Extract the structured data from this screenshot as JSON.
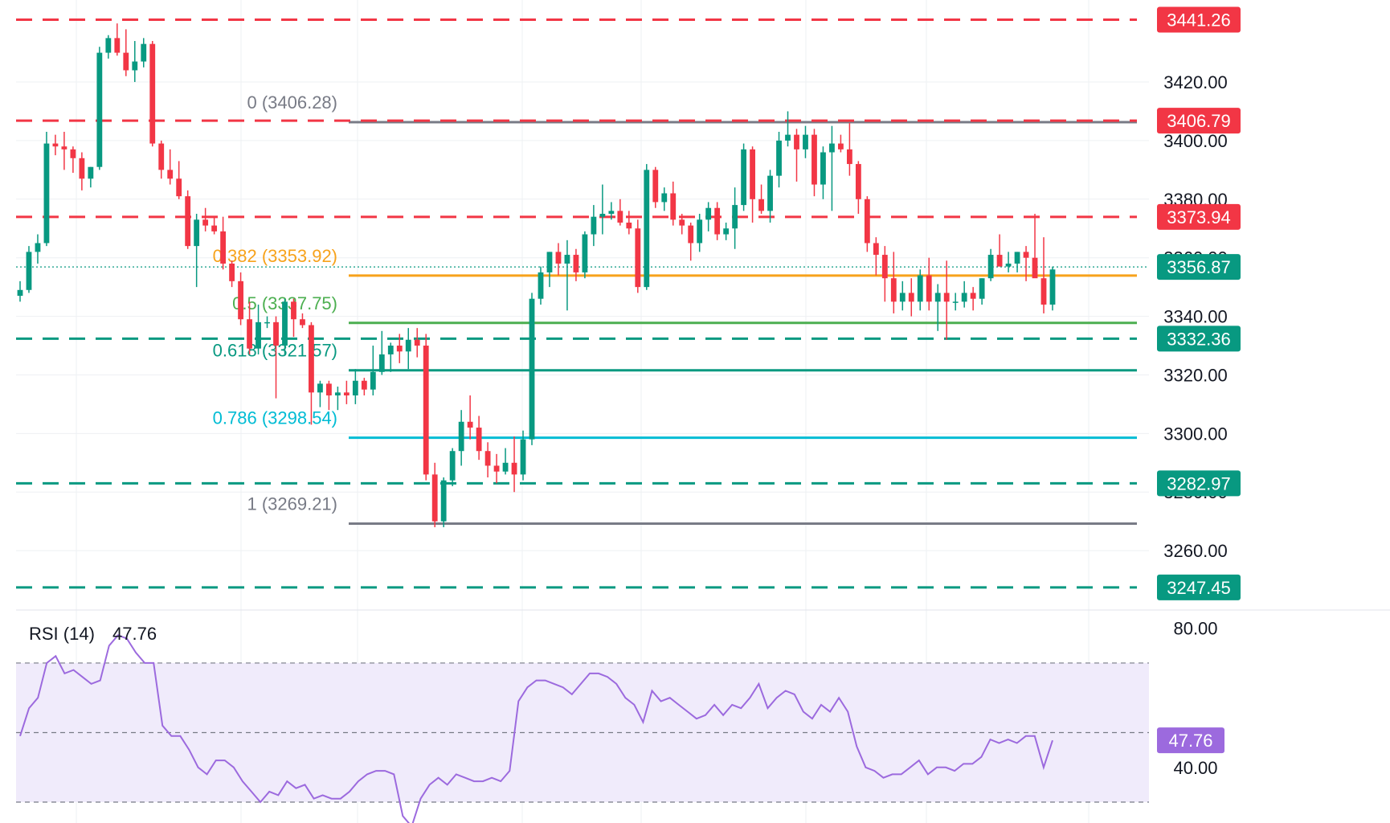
{
  "chart_data": {
    "type": "candlestick",
    "price_axis": {
      "ticks": [
        "3420.00",
        "3400.00",
        "3380.00",
        "3360.00",
        "3340.00",
        "3320.00",
        "3300.00",
        "3280.00",
        "3260.00"
      ],
      "ylim": [
        3236,
        3450
      ]
    },
    "horizontal_levels": [
      {
        "value": 3441.26,
        "label": "3441.26",
        "style": "dashed",
        "color": "#f23645"
      },
      {
        "value": 3406.79,
        "label": "3406.79",
        "style": "dashed",
        "color": "#f23645"
      },
      {
        "value": 3373.94,
        "label": "3373.94",
        "style": "dashed",
        "color": "#f23645"
      },
      {
        "value": 3332.36,
        "label": "3332.36",
        "style": "dashed",
        "color": "#089981"
      },
      {
        "value": 3282.97,
        "label": "3282.97",
        "style": "dashed",
        "color": "#089981"
      },
      {
        "value": 3247.45,
        "label": "3247.45",
        "style": "dashed",
        "color": "#089981"
      }
    ],
    "current_price": {
      "value": 3356.87,
      "label": "3356.87",
      "color": "#089981"
    },
    "fibonacci": [
      {
        "label": "0 (3406.28)",
        "value": 3406.28,
        "color": "#787b86"
      },
      {
        "label": "0.382 (3353.92)",
        "value": 3353.92,
        "color": "#f7a21b"
      },
      {
        "label": "0.5 (3337.75)",
        "value": 3337.75,
        "color": "#4caf50"
      },
      {
        "label": "0.618 (3321.57)",
        "value": 3321.57,
        "color": "#089981"
      },
      {
        "label": "0.786 (3298.54)",
        "value": 3298.54,
        "color": "#00bcd4"
      },
      {
        "label": "1 (3269.21)",
        "value": 3269.21,
        "color": "#787b86"
      }
    ],
    "candles": [
      [
        3347,
        3352,
        3345,
        3349
      ],
      [
        3349,
        3364,
        3348,
        3362
      ],
      [
        3362,
        3368,
        3358,
        3365
      ],
      [
        3365,
        3403,
        3364,
        3399
      ],
      [
        3399,
        3402,
        3395,
        3398
      ],
      [
        3398,
        3403,
        3390,
        3397
      ],
      [
        3397,
        3398,
        3389,
        3394
      ],
      [
        3394,
        3396,
        3383,
        3387
      ],
      [
        3387,
        3391,
        3384,
        3391
      ],
      [
        3391,
        3432,
        3390,
        3430
      ],
      [
        3430,
        3436,
        3428,
        3435
      ],
      [
        3435,
        3440,
        3429,
        3430
      ],
      [
        3430,
        3438,
        3422,
        3424
      ],
      [
        3424,
        3434,
        3420,
        3427
      ],
      [
        3427,
        3435,
        3425,
        3433
      ],
      [
        3433,
        3434,
        3398,
        3399
      ],
      [
        3399,
        3400,
        3387,
        3390
      ],
      [
        3390,
        3397,
        3385,
        3387
      ],
      [
        3387,
        3393,
        3380,
        3381
      ],
      [
        3381,
        3383,
        3363,
        3364
      ],
      [
        3364,
        3375,
        3350,
        3373
      ],
      [
        3373,
        3377,
        3369,
        3371
      ],
      [
        3371,
        3374,
        3368,
        3369
      ],
      [
        3369,
        3374,
        3356,
        3358
      ],
      [
        3358,
        3359,
        3350,
        3352
      ],
      [
        3352,
        3355,
        3337,
        3339
      ],
      [
        3339,
        3345,
        3327,
        3329
      ],
      [
        3329,
        3344,
        3327,
        3338
      ],
      [
        3338,
        3340,
        3336,
        3338
      ],
      [
        3338,
        3340,
        3312,
        3330
      ],
      [
        3330,
        3346,
        3327,
        3345
      ],
      [
        3345,
        3346,
        3333,
        3339
      ],
      [
        3339,
        3341,
        3336,
        3337
      ],
      [
        3337,
        3338,
        3303,
        3314
      ],
      [
        3314,
        3318,
        3309,
        3317
      ],
      [
        3317,
        3318,
        3308,
        3313
      ],
      [
        3313,
        3316,
        3308,
        3314
      ],
      [
        3314,
        3318,
        3310,
        3313
      ],
      [
        3313,
        3322,
        3310,
        3318
      ],
      [
        3318,
        3319,
        3313,
        3315
      ],
      [
        3315,
        3330,
        3313,
        3321
      ],
      [
        3321,
        3335,
        3320,
        3327
      ],
      [
        3327,
        3331,
        3321,
        3330
      ],
      [
        3330,
        3334,
        3324,
        3328
      ],
      [
        3328,
        3336,
        3322,
        3332
      ],
      [
        3332,
        3336,
        3326,
        3330
      ],
      [
        3330,
        3334,
        3284,
        3286
      ],
      [
        3286,
        3290,
        3268,
        3270
      ],
      [
        3270,
        3285,
        3268,
        3284
      ],
      [
        3284,
        3295,
        3282,
        3294
      ],
      [
        3294,
        3308,
        3289,
        3304
      ],
      [
        3304,
        3313,
        3298,
        3302
      ],
      [
        3302,
        3306,
        3291,
        3294
      ],
      [
        3294,
        3297,
        3285,
        3289
      ],
      [
        3289,
        3293,
        3283,
        3287
      ],
      [
        3287,
        3295,
        3286,
        3290
      ],
      [
        3290,
        3299,
        3280,
        3286
      ],
      [
        3286,
        3301,
        3284,
        3298
      ],
      [
        3298,
        3348,
        3296,
        3346
      ],
      [
        3346,
        3357,
        3344,
        3355
      ],
      [
        3355,
        3362,
        3350,
        3362
      ],
      [
        3362,
        3365,
        3354,
        3358
      ],
      [
        3358,
        3366,
        3342,
        3361
      ],
      [
        3361,
        3363,
        3352,
        3355
      ],
      [
        3355,
        3369,
        3353,
        3368
      ],
      [
        3368,
        3378,
        3364,
        3374
      ],
      [
        3374,
        3385,
        3368,
        3375
      ],
      [
        3375,
        3379,
        3373,
        3376
      ],
      [
        3376,
        3380,
        3371,
        3372
      ],
      [
        3372,
        3376,
        3368,
        3370
      ],
      [
        3370,
        3373,
        3348,
        3350
      ],
      [
        3350,
        3392,
        3349,
        3390
      ],
      [
        3390,
        3391,
        3377,
        3379
      ],
      [
        3379,
        3384,
        3376,
        3382
      ],
      [
        3382,
        3386,
        3371,
        3373
      ],
      [
        3373,
        3375,
        3368,
        3371
      ],
      [
        3371,
        3372,
        3359,
        3365
      ],
      [
        3365,
        3375,
        3362,
        3373
      ],
      [
        3373,
        3379,
        3369,
        3377
      ],
      [
        3377,
        3379,
        3366,
        3368
      ],
      [
        3368,
        3372,
        3366,
        3370
      ],
      [
        3370,
        3384,
        3363,
        3378
      ],
      [
        3378,
        3399,
        3376,
        3397
      ],
      [
        3397,
        3398,
        3372,
        3380
      ],
      [
        3380,
        3385,
        3375,
        3376
      ],
      [
        3376,
        3390,
        3372,
        3388
      ],
      [
        3388,
        3403,
        3384,
        3400
      ],
      [
        3400,
        3410,
        3398,
        3402
      ],
      [
        3402,
        3404,
        3386,
        3397
      ],
      [
        3397,
        3405,
        3394,
        3402
      ],
      [
        3402,
        3404,
        3381,
        3385
      ],
      [
        3385,
        3398,
        3380,
        3396
      ],
      [
        3396,
        3405,
        3376,
        3399
      ],
      [
        3399,
        3402,
        3396,
        3397
      ],
      [
        3397,
        3406,
        3388,
        3392
      ],
      [
        3392,
        3393,
        3375,
        3380
      ],
      [
        3380,
        3381,
        3362,
        3365
      ],
      [
        3365,
        3367,
        3354,
        3361
      ],
      [
        3361,
        3364,
        3345,
        3353
      ],
      [
        3353,
        3362,
        3341,
        3345
      ],
      [
        3345,
        3352,
        3342,
        3348
      ],
      [
        3348,
        3353,
        3340,
        3345
      ],
      [
        3345,
        3356,
        3342,
        3354
      ],
      [
        3354,
        3360,
        3342,
        3345
      ],
      [
        3345,
        3351,
        3335,
        3348
      ],
      [
        3348,
        3359,
        3332,
        3345
      ],
      [
        3345,
        3348,
        3342,
        3345
      ],
      [
        3345,
        3352,
        3343,
        3348
      ],
      [
        3348,
        3350,
        3342,
        3346
      ],
      [
        3346,
        3353,
        3344,
        3353
      ],
      [
        3353,
        3363,
        3352,
        3361
      ],
      [
        3361,
        3368,
        3357,
        3357
      ],
      [
        3357,
        3362,
        3355,
        3358
      ],
      [
        3358,
        3362,
        3355,
        3362
      ],
      [
        3362,
        3364,
        3352,
        3360
      ],
      [
        3360,
        3375,
        3354,
        3353
      ],
      [
        3353,
        3367,
        3341,
        3344
      ],
      [
        3344,
        3357,
        3342,
        3356
      ]
    ],
    "rsi": {
      "title": "RSI (14)",
      "value_label": "47.76",
      "ticks": [
        "80.00",
        "40.00"
      ],
      "levels": [
        70,
        50,
        30
      ],
      "ylim": [
        25,
        80
      ],
      "values": [
        49,
        57,
        60,
        70,
        72,
        67,
        68,
        66,
        64,
        65,
        75,
        78,
        77,
        73,
        70,
        70,
        52,
        49,
        49,
        45,
        40,
        38,
        42,
        42,
        40,
        36,
        33,
        30,
        33,
        32,
        36,
        34,
        35,
        31,
        32,
        31,
        31,
        33,
        36,
        38,
        39,
        39,
        38,
        26,
        23,
        31,
        35,
        37,
        35,
        38,
        37,
        36,
        36,
        37,
        36,
        39,
        59,
        63,
        65,
        65,
        64,
        63,
        61,
        64,
        67,
        67,
        66,
        64,
        60,
        58,
        53,
        62,
        59,
        60,
        58,
        56,
        54,
        55,
        58,
        55,
        58,
        57,
        60,
        64,
        57,
        60,
        62,
        61,
        56,
        54,
        58,
        56,
        60,
        56,
        46,
        40,
        39,
        37,
        38,
        38,
        40,
        42,
        38,
        40,
        40,
        39,
        41,
        41,
        43,
        48,
        47,
        48,
        47,
        49,
        49,
        40,
        47.76
      ],
      "line_color": "#9c6ade",
      "band_color": "#f0ebfb"
    }
  }
}
